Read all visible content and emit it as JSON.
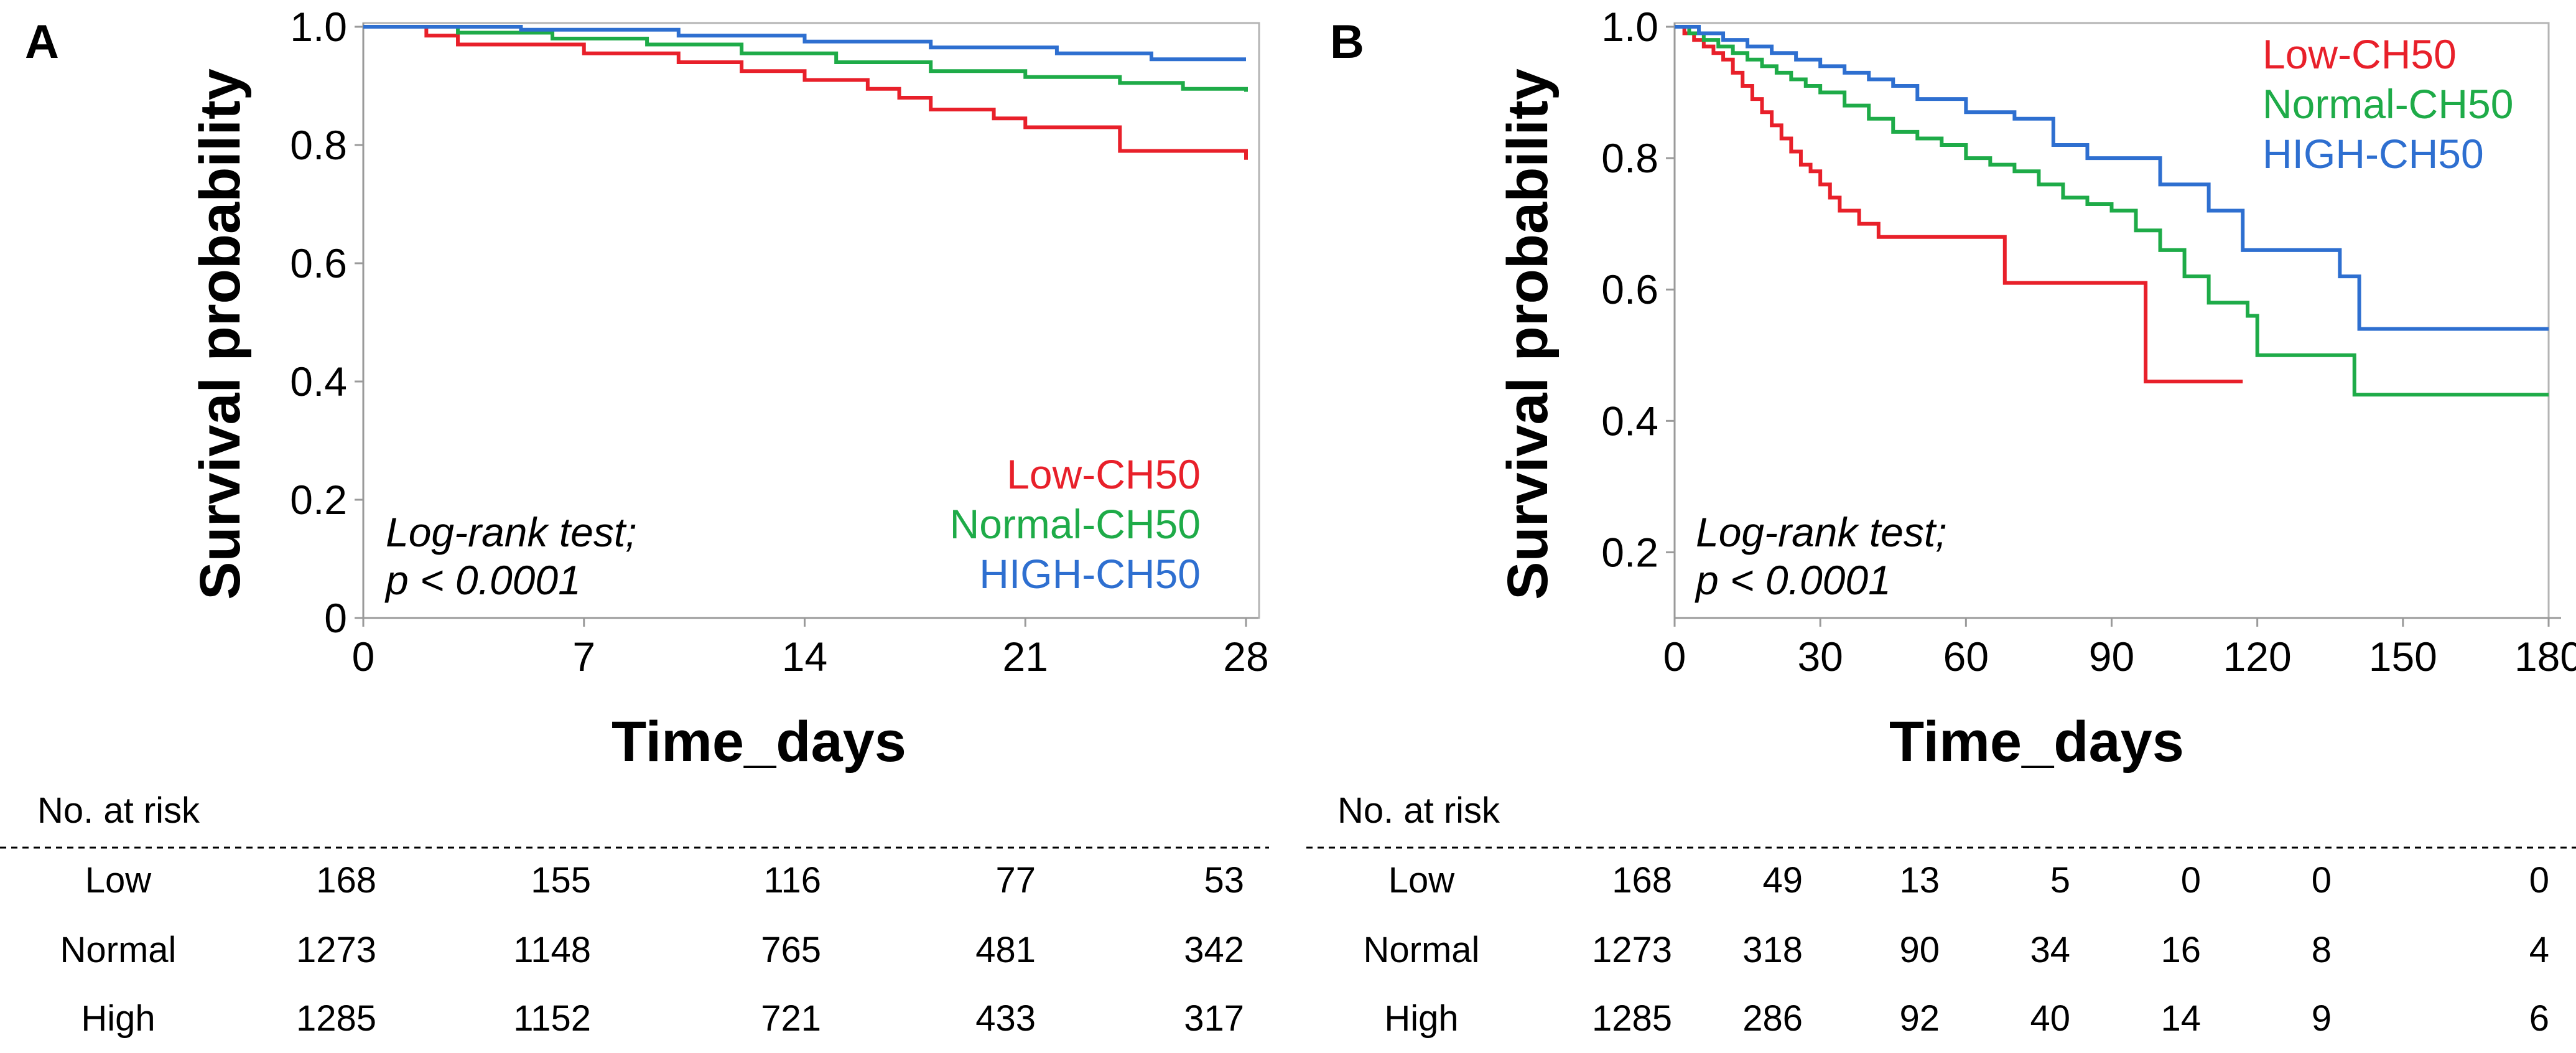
{
  "panels": [
    {
      "label": "A",
      "ylabel": "Survival probability",
      "xlabel": "Time_days",
      "annotation_line1": "Log-rank test;",
      "annotation_line2": "p < 0.0001",
      "risk_title": "No. at risk",
      "risk_rows": [
        {
          "group": "Low",
          "values": [
            "168",
            "155",
            "116",
            "77",
            "53"
          ]
        },
        {
          "group": "Normal",
          "values": [
            "1273",
            "1148",
            "765",
            "481",
            "342"
          ]
        },
        {
          "group": "High",
          "values": [
            "1285",
            "1152",
            "721",
            "433",
            "317"
          ]
        }
      ]
    },
    {
      "label": "B",
      "ylabel": "Survival probability",
      "xlabel": "Time_days",
      "annotation_line1": "Log-rank test;",
      "annotation_line2": "p  <  0.0001",
      "risk_title": "No. at risk",
      "risk_rows": [
        {
          "group": "Low",
          "values": [
            "168",
            "49",
            "13",
            "5",
            "0",
            "0",
            "0"
          ]
        },
        {
          "group": "Normal",
          "values": [
            "1273",
            "318",
            "90",
            "34",
            "16",
            "8",
            "4"
          ]
        },
        {
          "group": "High",
          "values": [
            "1285",
            "286",
            "92",
            "40",
            "14",
            "9",
            "6"
          ]
        }
      ]
    }
  ],
  "chart_data": [
    {
      "type": "line",
      "title": "A",
      "xlabel": "Time_days",
      "ylabel": "Survival probability",
      "xlim": [
        0,
        28
      ],
      "ylim": [
        0,
        1.0
      ],
      "x_ticks": [
        0,
        7,
        14,
        21,
        28
      ],
      "y_ticks": [
        0,
        0.2,
        0.4,
        0.6,
        0.8,
        1.0
      ],
      "y_tick_labels": [
        "0",
        "0.2",
        "0.4",
        "0.6",
        "0.8",
        "1.0"
      ],
      "legend_position": "bottom-right",
      "series": [
        {
          "name": "Low-CH50",
          "color": "#e8202a",
          "step": true,
          "x": [
            0,
            2,
            3,
            7,
            10,
            12,
            14,
            16,
            17,
            18,
            20,
            21,
            24,
            28
          ],
          "y": [
            1.0,
            0.985,
            0.97,
            0.955,
            0.94,
            0.925,
            0.91,
            0.895,
            0.88,
            0.86,
            0.845,
            0.83,
            0.79,
            0.775
          ]
        },
        {
          "name": "Normal-CH50",
          "color": "#1eab48",
          "step": true,
          "x": [
            0,
            3,
            6,
            9,
            12,
            15,
            18,
            21,
            24,
            26,
            28
          ],
          "y": [
            1.0,
            0.99,
            0.98,
            0.97,
            0.955,
            0.94,
            0.925,
            0.915,
            0.905,
            0.895,
            0.89
          ]
        },
        {
          "name": "HIGH-CH50",
          "color": "#2e6fd0",
          "step": true,
          "x": [
            0,
            5,
            10,
            14,
            18,
            22,
            25,
            28
          ],
          "y": [
            1.0,
            0.995,
            0.985,
            0.975,
            0.965,
            0.955,
            0.945,
            0.945
          ]
        }
      ]
    },
    {
      "type": "line",
      "title": "B",
      "xlabel": "Time_days",
      "ylabel": "Survival probability",
      "xlim": [
        0,
        180
      ],
      "ylim": [
        0.1,
        1.0
      ],
      "x_ticks": [
        0,
        30,
        60,
        90,
        120,
        150,
        180
      ],
      "y_ticks": [
        0.2,
        0.4,
        0.6,
        0.8,
        1.0
      ],
      "y_tick_labels": [
        "0.2",
        "0.4",
        "0.6",
        "0.8",
        "1.0"
      ],
      "legend_position": "top-right",
      "series": [
        {
          "name": "Low-CH50",
          "color": "#e8202a",
          "step": true,
          "x": [
            0,
            2,
            4,
            6,
            8,
            10,
            12,
            14,
            16,
            18,
            20,
            22,
            24,
            26,
            28,
            30,
            32,
            34,
            38,
            42,
            48,
            68,
            97,
            117
          ],
          "y": [
            1.0,
            0.99,
            0.98,
            0.97,
            0.96,
            0.95,
            0.93,
            0.91,
            0.89,
            0.87,
            0.85,
            0.83,
            0.81,
            0.79,
            0.78,
            0.76,
            0.74,
            0.72,
            0.7,
            0.68,
            0.68,
            0.61,
            0.46,
            0.46
          ]
        },
        {
          "name": "Normal-CH50",
          "color": "#1eab48",
          "step": true,
          "x": [
            0,
            3,
            6,
            9,
            12,
            15,
            18,
            21,
            24,
            27,
            30,
            35,
            40,
            45,
            50,
            55,
            60,
            65,
            70,
            75,
            80,
            85,
            90,
            95,
            100,
            105,
            110,
            118,
            120,
            130,
            140,
            180
          ],
          "y": [
            1.0,
            0.99,
            0.98,
            0.97,
            0.96,
            0.95,
            0.94,
            0.93,
            0.92,
            0.91,
            0.9,
            0.88,
            0.86,
            0.84,
            0.83,
            0.82,
            0.8,
            0.79,
            0.78,
            0.76,
            0.74,
            0.73,
            0.72,
            0.69,
            0.66,
            0.62,
            0.58,
            0.56,
            0.5,
            0.5,
            0.44,
            0.44
          ]
        },
        {
          "name": "HIGH-CH50",
          "color": "#2e6fd0",
          "step": true,
          "x": [
            0,
            5,
            10,
            15,
            20,
            25,
            30,
            35,
            40,
            45,
            50,
            60,
            70,
            78,
            85,
            100,
            110,
            117,
            122,
            137,
            141,
            180
          ],
          "y": [
            1.0,
            0.99,
            0.98,
            0.97,
            0.96,
            0.95,
            0.94,
            0.93,
            0.92,
            0.91,
            0.89,
            0.87,
            0.86,
            0.82,
            0.8,
            0.76,
            0.72,
            0.66,
            0.66,
            0.62,
            0.54,
            0.54
          ]
        }
      ]
    }
  ]
}
